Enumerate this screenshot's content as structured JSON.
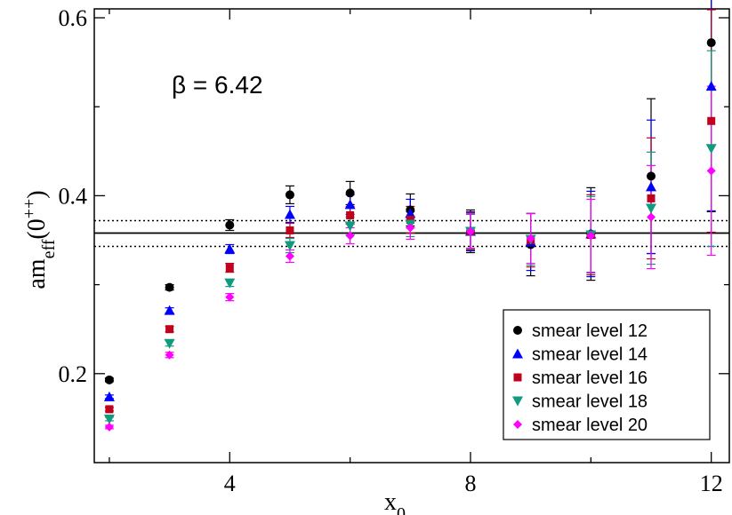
{
  "chart_data": {
    "type": "scatter",
    "title": "",
    "annotation": "β = 6.42",
    "xlabel": "x",
    "xlabel_sub": "0",
    "ylabel": "am",
    "ylabel_sub": "eff",
    "ylabel_paren": "(0",
    "ylabel_sup": "++",
    "ylabel_close": ")",
    "xlim": [
      1.75,
      12.3
    ],
    "ylim": [
      0.1,
      0.61
    ],
    "x_ticks": [
      4,
      8,
      12
    ],
    "y_ticks": [
      0.2,
      0.4,
      0.6
    ],
    "x_tick_labels": [
      "4",
      "8",
      "12"
    ],
    "y_tick_labels": [
      "0.2",
      "0.4",
      "0.6"
    ],
    "grid": false,
    "legend_position": "bottom-right",
    "fit": {
      "value": 0.358,
      "lower": 0.343,
      "upper": 0.372
    },
    "series": [
      {
        "name": "smear level 12",
        "marker": "circle",
        "color": "#000000",
        "x": [
          2,
          3,
          4,
          5,
          6,
          7,
          8,
          9,
          10,
          11,
          12
        ],
        "y": [
          0.193,
          0.297,
          0.367,
          0.401,
          0.403,
          0.384,
          0.36,
          0.345,
          0.357,
          0.422,
          0.572
        ],
        "err": [
          0.002,
          0.003,
          0.006,
          0.01,
          0.013,
          0.018,
          0.024,
          0.035,
          0.052,
          0.087,
          0.19
        ]
      },
      {
        "name": "smear level 14",
        "marker": "triangle-up",
        "color": "#0000ff",
        "x": [
          2,
          3,
          4,
          5,
          6,
          7,
          8,
          9,
          10,
          11,
          12
        ],
        "y": [
          0.174,
          0.271,
          0.34,
          0.379,
          0.39,
          0.38,
          0.36,
          0.348,
          0.357,
          0.41,
          0.523
        ],
        "err": [
          0.002,
          0.003,
          0.005,
          0.009,
          0.011,
          0.016,
          0.022,
          0.032,
          0.048,
          0.075,
          0.14
        ]
      },
      {
        "name": "smear level 16",
        "marker": "square",
        "color": "#c0001c",
        "x": [
          2,
          3,
          4,
          5,
          6,
          7,
          8,
          9,
          10,
          11,
          12
        ],
        "y": [
          0.16,
          0.25,
          0.319,
          0.361,
          0.378,
          0.373,
          0.36,
          0.35,
          0.356,
          0.397,
          0.484
        ],
        "err": [
          0.002,
          0.003,
          0.005,
          0.008,
          0.01,
          0.015,
          0.021,
          0.03,
          0.045,
          0.068,
          0.125
        ]
      },
      {
        "name": "smear level 18",
        "marker": "triangle-down",
        "color": "#109a7e",
        "x": [
          2,
          3,
          4,
          5,
          6,
          7,
          8,
          9,
          10,
          11,
          12
        ],
        "y": [
          0.149,
          0.234,
          0.302,
          0.344,
          0.366,
          0.368,
          0.36,
          0.351,
          0.356,
          0.386,
          0.453
        ],
        "err": [
          0.002,
          0.003,
          0.004,
          0.008,
          0.01,
          0.014,
          0.02,
          0.029,
          0.043,
          0.063,
          0.11
        ]
      },
      {
        "name": "smear level 20",
        "marker": "diamond",
        "color": "#ff00ff",
        "x": [
          2,
          3,
          4,
          5,
          6,
          7,
          8,
          9,
          10,
          11,
          12
        ],
        "y": [
          0.14,
          0.221,
          0.286,
          0.332,
          0.355,
          0.364,
          0.36,
          0.352,
          0.355,
          0.376,
          0.428
        ],
        "err": [
          0.002,
          0.003,
          0.004,
          0.007,
          0.009,
          0.013,
          0.019,
          0.028,
          0.041,
          0.058,
          0.095
        ]
      }
    ]
  }
}
